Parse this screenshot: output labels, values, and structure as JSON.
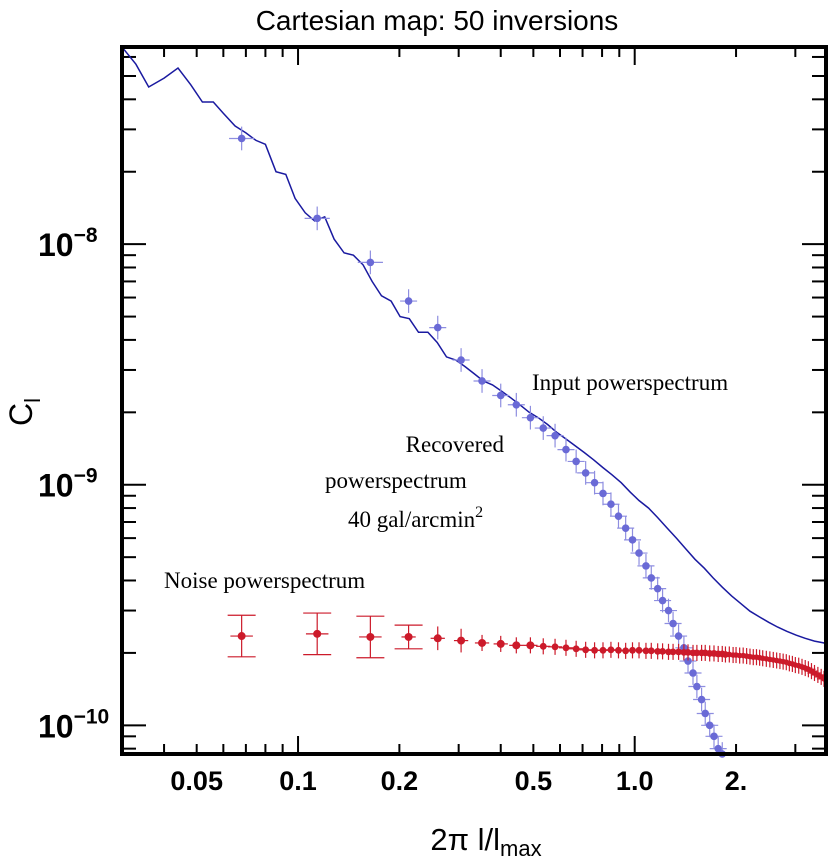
{
  "chart_data": {
    "type": "scatter",
    "title": "Cartesian map: 50 inversions",
    "xlabel": "2π l/l",
    "xlabel_sub": "max",
    "ylabel": "C",
    "ylabel_sub": "l",
    "xscale": "log",
    "yscale": "log",
    "xlim": [
      0.03,
      3.7
    ],
    "ylim": [
      7.6e-11,
      6.6e-08
    ],
    "x_ticks": [
      {
        "value": 0.05,
        "label": "0.05"
      },
      {
        "value": 0.1,
        "label": "0.1"
      },
      {
        "value": 0.2,
        "label": "0.2"
      },
      {
        "value": 0.5,
        "label": "0.5"
      },
      {
        "value": 1.0,
        "label": "1.0"
      },
      {
        "value": 2.0,
        "label": "2."
      }
    ],
    "y_ticks": [
      {
        "value": 1e-08,
        "label_base": "10",
        "label_exp": "−8"
      },
      {
        "value": 1e-09,
        "label_base": "10",
        "label_exp": "−9"
      },
      {
        "value": 1e-10,
        "label_base": "10",
        "label_exp": "−10"
      }
    ],
    "colors": {
      "input": "#1a1aa0",
      "recovered": "#6a6ad6",
      "recovered_err": "#8e8ee0",
      "noise": "#cc1a2a"
    },
    "annotations": {
      "input": "Input powerspectrum",
      "recovered_1": "Recovered",
      "recovered_2": "powerspectrum",
      "recovered_3": "40 gal/arcmin",
      "recovered_3_sup": "2",
      "noise": "Noise powerspectrum"
    },
    "series": [
      {
        "name": "Input powerspectrum",
        "style": "line",
        "x": [
          0.03,
          0.033,
          0.036,
          0.04,
          0.044,
          0.048,
          0.052,
          0.056,
          0.06,
          0.065,
          0.07,
          0.075,
          0.08,
          0.086,
          0.092,
          0.098,
          0.105,
          0.112,
          0.12,
          0.128,
          0.137,
          0.146,
          0.156,
          0.166,
          0.177,
          0.189,
          0.201,
          0.214,
          0.228,
          0.243,
          0.259,
          0.276,
          0.294,
          0.313,
          0.333,
          0.355,
          0.378,
          0.402,
          0.428,
          0.456,
          0.486,
          0.517,
          0.551,
          0.587,
          0.625,
          0.666,
          0.709,
          0.755,
          0.804,
          0.856,
          0.912,
          0.971,
          1.03,
          1.1,
          1.17,
          1.25,
          1.33,
          1.42,
          1.51,
          1.61,
          1.71,
          1.82,
          1.94,
          2.07,
          2.2,
          2.35,
          2.5,
          2.66,
          2.83,
          3.02,
          3.21,
          3.42,
          3.64,
          3.7
        ],
        "y": [
          6.6e-08,
          5.6e-08,
          4.5e-08,
          4.9e-08,
          5.4e-08,
          4.6e-08,
          3.9e-08,
          3.9e-08,
          3.5e-08,
          3.1e-08,
          2.9e-08,
          2.7e-08,
          2.6e-08,
          2e-08,
          1.95e-08,
          1.55e-08,
          1.35e-08,
          1.25e-08,
          1.3e-08,
          1.05e-08,
          9.2e-09,
          9e-09,
          8.2e-09,
          7e-09,
          6.1e-09,
          5.8e-09,
          5e-09,
          4.9e-09,
          4.3e-09,
          4.3e-09,
          3.9e-09,
          3.4e-09,
          3.3e-09,
          3.1e-09,
          2.9e-09,
          2.7e-09,
          2.6e-09,
          2.45e-09,
          2.3e-09,
          2.15e-09,
          2e-09,
          1.9e-09,
          1.78e-09,
          1.65e-09,
          1.55e-09,
          1.45e-09,
          1.36e-09,
          1.27e-09,
          1.18e-09,
          1.1e-09,
          1.02e-09,
          9.3e-10,
          8.6e-10,
          8e-10,
          7.3e-10,
          6.6e-10,
          6e-10,
          5.4e-10,
          4.9e-10,
          4.5e-10,
          4.1e-10,
          3.75e-10,
          3.45e-10,
          3.2e-10,
          2.98e-10,
          2.82e-10,
          2.68e-10,
          2.56e-10,
          2.46e-10,
          2.37e-10,
          2.3e-10,
          2.24e-10,
          2.2e-10,
          2.18e-10
        ]
      },
      {
        "name": "Recovered powerspectrum 40 gal/arcmin2",
        "style": "points",
        "x": [
          0.068,
          0.114,
          0.164,
          0.213,
          0.26,
          0.305,
          0.352,
          0.4,
          0.445,
          0.49,
          0.535,
          0.58,
          0.625,
          0.67,
          0.715,
          0.76,
          0.805,
          0.85,
          0.895,
          0.94,
          0.985,
          1.03,
          1.08,
          1.12,
          1.17,
          1.21,
          1.26,
          1.3,
          1.35,
          1.4,
          1.44,
          1.49,
          1.53,
          1.58,
          1.62,
          1.67,
          1.72,
          1.77,
          1.82
        ],
        "y": [
          2.75e-08,
          1.28e-08,
          8.4e-09,
          5.8e-09,
          4.5e-09,
          3.3e-09,
          2.7e-09,
          2.35e-09,
          2.15e-09,
          1.9e-09,
          1.72e-09,
          1.6e-09,
          1.4e-09,
          1.25e-09,
          1.12e-09,
          1.02e-09,
          9.2e-10,
          8.3e-10,
          7.4e-10,
          6.6e-10,
          5.9e-10,
          5.2e-10,
          4.6e-10,
          4.1e-10,
          3.7e-10,
          3.3e-10,
          3e-10,
          2.65e-10,
          2.35e-10,
          2.1e-10,
          1.85e-10,
          1.65e-10,
          1.45e-10,
          1.28e-10,
          1.12e-10,
          1e-10,
          9e-11,
          8e-11,
          7.6e-11
        ]
      },
      {
        "name": "Noise powerspectrum",
        "style": "points",
        "x": [
          0.068,
          0.114,
          0.164,
          0.213,
          0.26,
          0.305,
          0.352,
          0.4,
          0.445,
          0.49,
          0.535,
          0.58,
          0.625,
          0.67,
          0.715,
          0.76,
          0.805,
          0.85,
          0.895,
          0.94,
          0.985,
          1.03,
          1.08,
          1.12,
          1.17,
          1.21,
          1.26,
          1.3,
          1.35,
          1.4,
          1.44,
          1.49,
          1.53,
          1.58,
          1.62,
          1.67,
          1.72,
          1.77,
          1.82,
          1.86,
          1.91,
          1.96,
          2.0,
          2.05,
          2.1,
          2.15,
          2.2,
          2.25,
          2.3,
          2.35,
          2.4,
          2.46,
          2.52,
          2.58,
          2.64,
          2.7,
          2.76,
          2.82,
          2.88,
          2.94,
          3.0,
          3.07,
          3.14,
          3.21,
          3.28,
          3.35,
          3.42,
          3.5,
          3.58,
          3.65
        ],
        "y": [
          2.35e-10,
          2.4e-10,
          2.33e-10,
          2.33e-10,
          2.3e-10,
          2.25e-10,
          2.2e-10,
          2.18e-10,
          2.15e-10,
          2.15e-10,
          2.13e-10,
          2.12e-10,
          2.1e-10,
          2.08e-10,
          2.06e-10,
          2.05e-10,
          2.05e-10,
          2.06e-10,
          2.05e-10,
          2.04e-10,
          2.05e-10,
          2.05e-10,
          2.04e-10,
          2.04e-10,
          2.03e-10,
          2.03e-10,
          2.02e-10,
          2.02e-10,
          2.02e-10,
          2.01e-10,
          2.01e-10,
          2e-10,
          2e-10,
          2e-10,
          2e-10,
          1.99e-10,
          1.99e-10,
          1.98e-10,
          1.98e-10,
          1.97e-10,
          1.97e-10,
          1.96e-10,
          1.96e-10,
          1.95e-10,
          1.95e-10,
          1.94e-10,
          1.93e-10,
          1.92e-10,
          1.92e-10,
          1.91e-10,
          1.9e-10,
          1.89e-10,
          1.88e-10,
          1.87e-10,
          1.86e-10,
          1.85e-10,
          1.84e-10,
          1.83e-10,
          1.81e-10,
          1.8e-10,
          1.78e-10,
          1.77e-10,
          1.75e-10,
          1.73e-10,
          1.71e-10,
          1.68e-10,
          1.65e-10,
          1.62e-10,
          1.59e-10,
          1.56e-10
        ]
      }
    ]
  }
}
